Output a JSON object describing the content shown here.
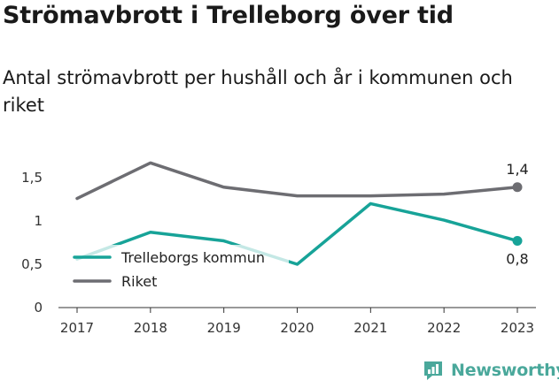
{
  "title": "Strömavbrott i Trelleborg över tid",
  "subtitle": "Antal strömavbrott per hushåll och år i kommunen och riket",
  "brand": {
    "name": "Newsworthy",
    "icon": "chart-logo-icon"
  },
  "colors": {
    "kommun": "#17a398",
    "riket": "#6d6d72",
    "brand": "#4aa89b"
  },
  "chart_data": {
    "type": "line",
    "x": [
      "2017",
      "2018",
      "2019",
      "2020",
      "2021",
      "2022",
      "2023"
    ],
    "y_ticks": [
      {
        "value": 0,
        "label": "0"
      },
      {
        "value": 0.5,
        "label": "0,5"
      },
      {
        "value": 1,
        "label": "1"
      },
      {
        "value": 1.5,
        "label": "1,5"
      }
    ],
    "ylim": [
      0,
      1.8
    ],
    "grid": false,
    "legend_position": "bottom-left",
    "series": [
      {
        "key": "kommun",
        "name": "Trelleborgs kommun",
        "color": "#17a398",
        "values": [
          0.56,
          0.87,
          0.77,
          0.5,
          1.2,
          1.01,
          0.77
        ],
        "end_label": "0,8"
      },
      {
        "key": "riket",
        "name": "Riket",
        "color": "#6d6d72",
        "values": [
          1.26,
          1.67,
          1.39,
          1.29,
          1.29,
          1.31,
          1.39
        ],
        "end_label": "1,4"
      }
    ]
  }
}
